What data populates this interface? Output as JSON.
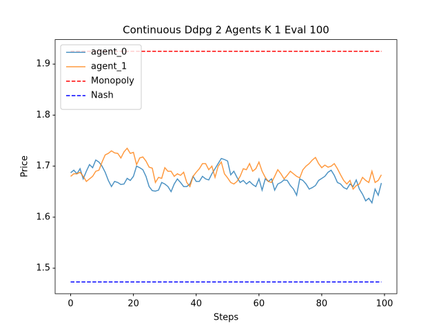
{
  "chart_data": {
    "type": "line",
    "title": "Continuous Ddpg 2 Agents K 1 Eval 100",
    "xlabel": "Steps",
    "ylabel": "Price",
    "x": [
      0,
      1,
      2,
      3,
      4,
      5,
      6,
      7,
      8,
      9,
      10,
      11,
      12,
      13,
      14,
      15,
      16,
      17,
      18,
      19,
      20,
      21,
      22,
      23,
      24,
      25,
      26,
      27,
      28,
      29,
      30,
      31,
      32,
      33,
      34,
      35,
      36,
      37,
      38,
      39,
      40,
      41,
      42,
      43,
      44,
      45,
      46,
      47,
      48,
      49,
      50,
      51,
      52,
      53,
      54,
      55,
      56,
      57,
      58,
      59,
      60,
      61,
      62,
      63,
      64,
      65,
      66,
      67,
      68,
      69,
      70,
      71,
      72,
      73,
      74,
      75,
      76,
      77,
      78,
      79,
      80,
      81,
      82,
      83,
      84,
      85,
      86,
      87,
      88,
      89,
      90,
      91,
      92,
      93,
      94,
      95,
      96,
      97,
      98,
      99
    ],
    "series": [
      {
        "name": "agent_0",
        "color": "#1f77b4",
        "values": [
          1.687,
          1.692,
          1.685,
          1.695,
          1.675,
          1.69,
          1.703,
          1.697,
          1.712,
          1.708,
          1.7,
          1.688,
          1.672,
          1.66,
          1.67,
          1.668,
          1.664,
          1.665,
          1.676,
          1.672,
          1.68,
          1.7,
          1.697,
          1.693,
          1.68,
          1.66,
          1.652,
          1.651,
          1.653,
          1.668,
          1.665,
          1.66,
          1.65,
          1.665,
          1.675,
          1.668,
          1.66,
          1.66,
          1.665,
          1.68,
          1.67,
          1.67,
          1.68,
          1.675,
          1.673,
          1.685,
          1.695,
          1.705,
          1.715,
          1.713,
          1.71,
          1.683,
          1.69,
          1.678,
          1.668,
          1.672,
          1.665,
          1.67,
          1.664,
          1.66,
          1.675,
          1.653,
          1.675,
          1.67,
          1.675,
          1.653,
          1.665,
          1.668,
          1.673,
          1.672,
          1.662,
          1.655,
          1.643,
          1.675,
          1.672,
          1.665,
          1.655,
          1.658,
          1.662,
          1.672,
          1.676,
          1.68,
          1.688,
          1.692,
          1.682,
          1.668,
          1.665,
          1.658,
          1.655,
          1.665,
          1.66,
          1.673,
          1.655,
          1.645,
          1.632,
          1.637,
          1.628,
          1.655,
          1.643,
          1.667
        ]
      },
      {
        "name": "agent_1",
        "color": "#ff7f0e",
        "values": [
          1.68,
          1.685,
          1.685,
          1.688,
          1.68,
          1.67,
          1.675,
          1.68,
          1.69,
          1.692,
          1.708,
          1.722,
          1.725,
          1.73,
          1.726,
          1.725,
          1.716,
          1.728,
          1.735,
          1.725,
          1.727,
          1.703,
          1.716,
          1.718,
          1.71,
          1.698,
          1.696,
          1.668,
          1.678,
          1.676,
          1.697,
          1.69,
          1.69,
          1.68,
          1.685,
          1.682,
          1.688,
          1.668,
          1.66,
          1.68,
          1.688,
          1.695,
          1.705,
          1.705,
          1.693,
          1.7,
          1.678,
          1.7,
          1.708,
          1.685,
          1.677,
          1.668,
          1.665,
          1.67,
          1.68,
          1.695,
          1.693,
          1.705,
          1.69,
          1.695,
          1.708,
          1.69,
          1.678,
          1.67,
          1.668,
          1.68,
          1.693,
          1.685,
          1.675,
          1.682,
          1.69,
          1.685,
          1.68,
          1.677,
          1.693,
          1.7,
          1.705,
          1.712,
          1.717,
          1.705,
          1.697,
          1.702,
          1.698,
          1.7,
          1.705,
          1.695,
          1.683,
          1.672,
          1.665,
          1.672,
          1.655,
          1.662,
          1.665,
          1.678,
          1.672,
          1.668,
          1.69,
          1.668,
          1.672,
          1.683
        ]
      }
    ],
    "hlines": [
      {
        "name": "Monopoly",
        "color": "#ff0000",
        "value": 1.925,
        "xrange": [
          0,
          99
        ],
        "linestyle": "dashed"
      },
      {
        "name": "Nash",
        "color": "#0000ff",
        "value": 1.473,
        "xrange": [
          0,
          99
        ],
        "linestyle": "dashed"
      }
    ],
    "xlim": [
      -4.95,
      103.95
    ],
    "ylim": [
      1.45,
      1.948
    ],
    "xticks": [
      0,
      20,
      40,
      60,
      80,
      100
    ],
    "yticks": [
      1.5,
      1.6,
      1.7,
      1.8,
      1.9
    ],
    "legend": "upper left"
  }
}
